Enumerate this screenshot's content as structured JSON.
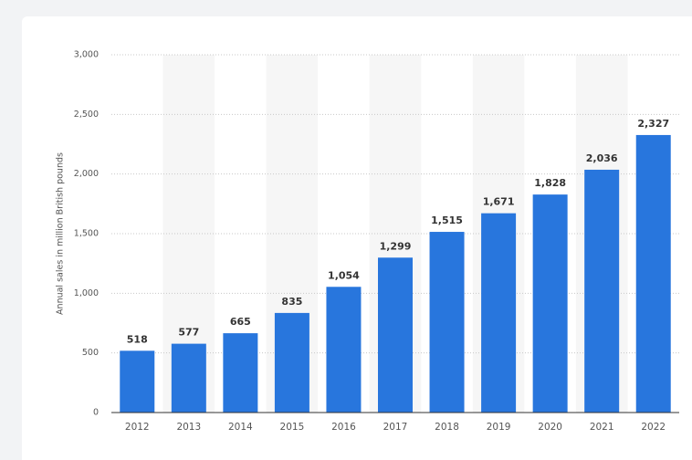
{
  "chart_data": {
    "type": "bar",
    "y_label": "Annual sales in million British pounds",
    "categories": [
      "2012",
      "2013",
      "2014",
      "2015",
      "2016",
      "2017",
      "2018",
      "2019",
      "2020",
      "2021",
      "2022"
    ],
    "values": [
      518,
      577,
      665,
      835,
      1054,
      1299,
      1515,
      1671,
      1828,
      2036,
      2327
    ],
    "value_labels": [
      "518",
      "577",
      "665",
      "835",
      "1,054",
      "1,299",
      "1,515",
      "1,671",
      "1,828",
      "2,036",
      "2,327"
    ],
    "color": "#2876dd",
    "ylim": [
      0,
      3000
    ],
    "yticks": [
      0,
      500,
      {
        "value": 1000,
        "label": "1,000"
      },
      {
        "value": 1500,
        "label": "1,500"
      },
      {
        "value": 2000,
        "label": "2,000"
      },
      {
        "value": 2500,
        "label": "2,500"
      },
      {
        "value": 3000,
        "label": "3,000"
      }
    ],
    "grid": true
  }
}
